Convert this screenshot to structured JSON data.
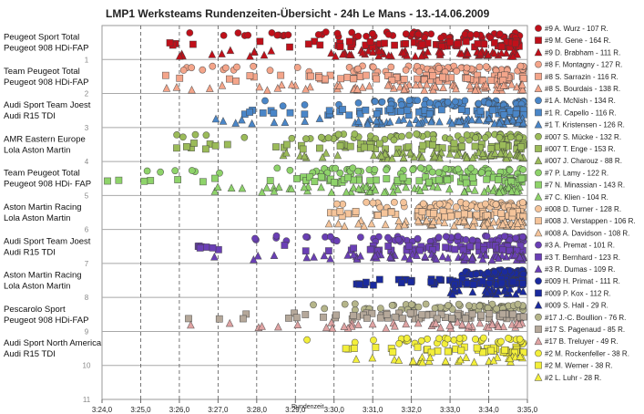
{
  "chart_data": {
    "type": "scatter",
    "title": "LMP1 Werksteams Rundenzeiten-Übersicht - 24h Le Mans - 13.-14.06.2009",
    "xlabel": "Rundenzeit",
    "ylabel": "",
    "x_ticks": [
      "3:24,0",
      "3:25,0",
      "3:26,0",
      "3:27,0",
      "3:28,0",
      "3:29,0",
      "3:30,0",
      "3:31,0",
      "3:32,0",
      "3:33,0",
      "3:34,0",
      "3:35,0"
    ],
    "xlim": [
      204,
      215
    ],
    "ylim": [
      0,
      11
    ],
    "y_ticks": [
      1,
      2,
      3,
      4,
      5,
      6,
      7,
      8,
      9,
      10,
      11
    ],
    "grid_x": "dashed",
    "grid_y": true,
    "legend_position": "right",
    "teams": [
      {
        "line1": "Peugeot Sport Total",
        "line2": "Peugeot 908 HDi-FAP",
        "rank": 1,
        "drivers": [
          {
            "label": "#9 A. Wurz - 107 R.",
            "marker": "circle",
            "color": "#c0101a",
            "laps": 107,
            "xmin": 206.0,
            "xmax": 214.8
          },
          {
            "label": "#9 M. Gene - 164 R.",
            "marker": "square",
            "color": "#c0101a",
            "laps": 164,
            "xmin": 205.6,
            "xmax": 214.8
          },
          {
            "label": "#9 D. Brabham - 111 R.",
            "marker": "triangle",
            "color": "#c0101a",
            "laps": 111,
            "xmin": 205.9,
            "xmax": 214.9
          }
        ]
      },
      {
        "line1": "Team Peugeot Total",
        "line2": "Peugeot 908 HDi-FAP",
        "rank": 2,
        "drivers": [
          {
            "label": "#8 F. Montagny - 127 R.",
            "marker": "circle",
            "color": "#f4a58a",
            "laps": 127,
            "xmin": 205.6,
            "xmax": 214.9
          },
          {
            "label": "#8 S. Sarrazin - 116 R.",
            "marker": "square",
            "color": "#f4a58a",
            "laps": 116,
            "xmin": 205.5,
            "xmax": 214.9
          },
          {
            "label": "#8 S. Bourdais - 138 R.",
            "marker": "triangle",
            "color": "#f4a58a",
            "laps": 138,
            "xmin": 205.6,
            "xmax": 214.9
          }
        ]
      },
      {
        "line1": "Audi Sport Team Joest",
        "line2": "Audi R15 TDI",
        "rank": 3,
        "drivers": [
          {
            "label": "#1 A. McNish - 134 R.",
            "marker": "circle",
            "color": "#4a86c8",
            "laps": 134,
            "xmin": 208.1,
            "xmax": 214.9
          },
          {
            "label": "#1 R. Capello - 116 R.",
            "marker": "square",
            "color": "#4a86c8",
            "laps": 116,
            "xmin": 207.6,
            "xmax": 214.9
          },
          {
            "label": "#1 T. Kristensen - 126 R.",
            "marker": "triangle",
            "color": "#4a86c8",
            "laps": 126,
            "xmin": 206.8,
            "xmax": 214.9
          }
        ]
      },
      {
        "line1": "AMR Eastern Europe",
        "line2": "Lola Aston Martin",
        "rank": 4,
        "drivers": [
          {
            "label": "#007 S. Mücke - 132 R.",
            "marker": "circle",
            "color": "#9bbb59",
            "laps": 132,
            "xmin": 205.6,
            "xmax": 214.9
          },
          {
            "label": "#007 T. Enge - 153 R.",
            "marker": "square",
            "color": "#9bbb59",
            "laps": 153,
            "xmin": 205.8,
            "xmax": 214.9
          },
          {
            "label": "#007 J. Charouz - 88 R.",
            "marker": "triangle",
            "color": "#9bbb59",
            "laps": 88,
            "xmin": 207.9,
            "xmax": 214.9
          }
        ]
      },
      {
        "line1": "Team Peugeot Total",
        "line2": "Peugeot 908 HDi- FAP",
        "rank": 5,
        "drivers": [
          {
            "label": "#7 P. Lamy - 122 R.",
            "marker": "circle",
            "color": "#8ed36a",
            "laps": 122,
            "xmin": 205.0,
            "xmax": 214.9
          },
          {
            "label": "#7 N. Minassian - 143 R.",
            "marker": "square",
            "color": "#8ed36a",
            "laps": 143,
            "xmin": 204.1,
            "xmax": 214.9
          },
          {
            "label": "#7 C. Klien - 104 R.",
            "marker": "triangle",
            "color": "#8ed36a",
            "laps": 104,
            "xmin": 206.6,
            "xmax": 214.9
          }
        ]
      },
      {
        "line1": "Aston Martin Racing",
        "line2": "Lola Aston Martin",
        "rank": 6,
        "drivers": [
          {
            "label": "#008 D. Turner - 128 R.",
            "marker": "circle",
            "color": "#f5c49a",
            "laps": 128,
            "xmin": 209.8,
            "xmax": 214.9
          },
          {
            "label": "#008 J. Verstappen - 106 R.",
            "marker": "square",
            "color": "#f5c49a",
            "laps": 106,
            "xmin": 209.9,
            "xmax": 214.9
          },
          {
            "label": "#008 A. Davidson - 108 R.",
            "marker": "triangle",
            "color": "#f5c49a",
            "laps": 108,
            "xmin": 209.8,
            "xmax": 214.9
          }
        ]
      },
      {
        "line1": "Audi Sport Team Joest",
        "line2": "Audi R15 TDI",
        "rank": 7,
        "drivers": [
          {
            "label": "#3 A. Premat - 101 R.",
            "marker": "circle",
            "color": "#6a3fb5",
            "laps": 101,
            "xmin": 207.8,
            "xmax": 214.9
          },
          {
            "label": "#3 T. Bernhard - 123 R.",
            "marker": "square",
            "color": "#6a3fb5",
            "laps": 123,
            "xmin": 206.3,
            "xmax": 214.9
          },
          {
            "label": "#3 R. Dumas - 109 R.",
            "marker": "triangle",
            "color": "#6a3fb5",
            "laps": 109,
            "xmin": 206.3,
            "xmax": 214.9
          }
        ]
      },
      {
        "line1": "Aston Martin Racing",
        "line2": "Lola Aston Martin",
        "rank": 8,
        "drivers": [
          {
            "label": "#009 H. Primat - 111 R.",
            "marker": "circle",
            "color": "#1a2a9e",
            "laps": 111,
            "xmin": 213.3,
            "xmax": 214.9
          },
          {
            "label": "#009 P. Kox - 112 R.",
            "marker": "square",
            "color": "#1a2a9e",
            "laps": 112,
            "xmin": 210.4,
            "xmax": 214.9
          },
          {
            "label": "#009 S. Hall - 29 R.",
            "marker": "triangle",
            "color": "#1a2a9e",
            "laps": 29,
            "xmin": 213.0,
            "xmax": 214.9
          }
        ]
      },
      {
        "line1": "Pescarolo Sport",
        "line2": "Peugeot 908 HDi-FAP",
        "rank": 9,
        "drivers": [
          {
            "label": "#17 J.-C. Boullion - 76 R.",
            "marker": "circle",
            "color": "#b5b58a",
            "laps": 76,
            "xmin": 209.0,
            "xmax": 214.9
          },
          {
            "label": "#17 S. Pagenaud - 85 R.",
            "marker": "square",
            "color": "#b5a89a",
            "laps": 85,
            "xmin": 206.0,
            "xmax": 214.9
          },
          {
            "label": "#17 B. Treluyer - 49 R.",
            "marker": "triangle",
            "color": "#e0a3a3",
            "laps": 49,
            "xmin": 205.8,
            "xmax": 214.9
          }
        ]
      },
      {
        "line1": "Audi Sport North America",
        "line2": "Audi R15 TDI",
        "rank": 10,
        "drivers": [
          {
            "label": "#2 M. Rockenfeller - 38 R.",
            "marker": "circle",
            "color": "#f3ef3a",
            "laps": 38,
            "xmin": 209.0,
            "xmax": 214.9
          },
          {
            "label": "#2 M. Werner - 38 R.",
            "marker": "square",
            "color": "#f3ef3a",
            "laps": 38,
            "xmin": 210.0,
            "xmax": 214.9
          },
          {
            "label": "#2 L. Luhr - 28 R.",
            "marker": "triangle",
            "color": "#f3ef3a",
            "laps": 28,
            "xmin": 209.5,
            "xmax": 214.9
          }
        ]
      }
    ]
  }
}
